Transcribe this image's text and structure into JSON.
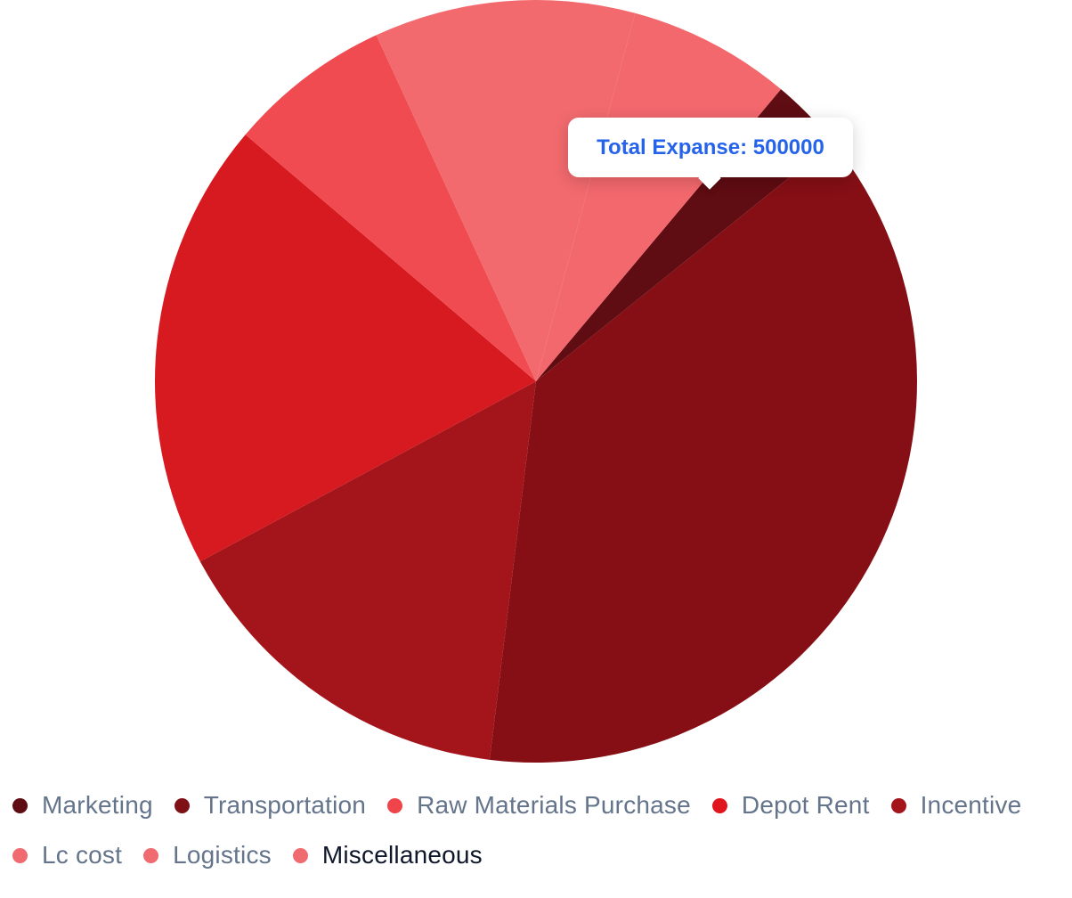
{
  "chart_data": {
    "type": "pie",
    "title": "",
    "series_label": "Total Expanse",
    "categories": [
      "Marketing",
      "Transportation",
      "Raw Materials Purchase",
      "Depot Rent",
      "Incentive",
      "Lc cost",
      "Logistics",
      "Miscellaneous"
    ],
    "values": [
      225000,
      2725000,
      1100000,
      1375000,
      500000,
      800000,
      0,
      500000
    ],
    "colors": [
      "#5f0c12",
      "#850f15",
      "#a3151b",
      "#d71920",
      "#f04b51",
      "#f26a6e",
      "#ef6b70",
      "#f2686d"
    ],
    "dot_colors": [
      "#5f0c12",
      "#7f1015",
      "#ef4449",
      "#e1161d",
      "#a3151b",
      "#ef6b70",
      "#ef6b70",
      "#ef6b70"
    ],
    "legend_position": "bottom",
    "active_legend_item": "Miscellaneous",
    "tooltip": {
      "label": "Total Expanse",
      "value": "500000",
      "text": "Total Expanse: 500000"
    }
  }
}
